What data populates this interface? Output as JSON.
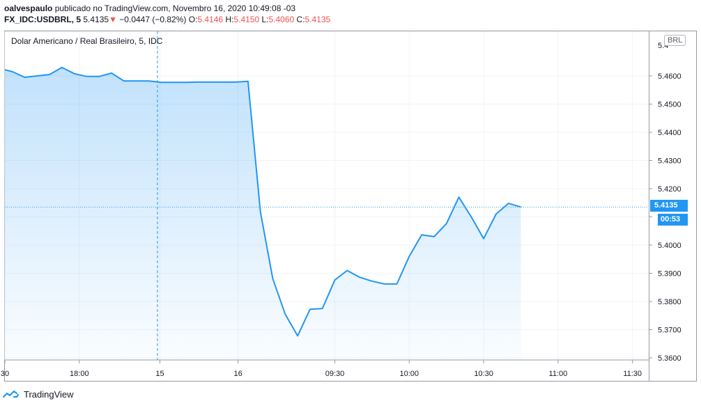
{
  "header": {
    "user": "oalvespaulo",
    "published": "publicado no TradingView.com, Novembro 16, 2020 10:49:08 -03",
    "symbol": "FX_IDC:USDBRL, 5",
    "last": "5.4135",
    "change": "−0.0447 (−0.82%)",
    "ohlc": {
      "o_label": "O:",
      "o": "5.4146",
      "h_label": "H:",
      "h": "5.4150",
      "l_label": "L:",
      "l": "5.4060",
      "c_label": "C:",
      "c": "5.4135"
    }
  },
  "legend": "Dolar Americano / Real Brasileiro, 5, IDC",
  "currency_badge": "BRL",
  "price_tag": "5.4135",
  "countdown_tag": "00:53",
  "footer": {
    "brand": "TradingView"
  },
  "colors": {
    "line": "#2196f3",
    "fill": "#2196f3",
    "grid": "#f0f3fa",
    "down": "#ef5350"
  },
  "chart_data": {
    "type": "area",
    "title": "Dolar Americano / Real Brasileiro, 5, IDC",
    "ylim": [
      5.36,
      5.47
    ],
    "y_ticks": [
      "5.3600",
      "5.3700",
      "5.3800",
      "5.3900",
      "5.4000",
      "5.4100",
      "5.4200",
      "5.4300",
      "5.4400",
      "5.4500",
      "5.4600"
    ],
    "x_ticks": [
      {
        "label": "30",
        "x": 0
      },
      {
        "label": "18:00",
        "x": 6
      },
      {
        "label": "15",
        "x": 12.5
      },
      {
        "label": "16",
        "x": 18.8
      },
      {
        "label": "09:30",
        "x": 26.6
      },
      {
        "label": "10:00",
        "x": 32.6
      },
      {
        "label": "10:30",
        "x": 38.6
      },
      {
        "label": "11:00",
        "x": 44.6
      },
      {
        "label": "11:30",
        "x": 50.6
      }
    ],
    "grid": true,
    "last_value": 5.4135,
    "session_break_x": 12.3,
    "points": [
      [
        -0.3,
        5.4625
      ],
      [
        0.6,
        5.4615
      ],
      [
        1.6,
        5.4595
      ],
      [
        2.6,
        5.46
      ],
      [
        3.6,
        5.4605
      ],
      [
        4.6,
        5.463
      ],
      [
        5.6,
        5.4608
      ],
      [
        6.6,
        5.4598
      ],
      [
        7.6,
        5.4598
      ],
      [
        8.6,
        5.461
      ],
      [
        9.6,
        5.4582
      ],
      [
        10.6,
        5.4582
      ],
      [
        11.6,
        5.4582
      ],
      [
        12.6,
        5.4577
      ],
      [
        13.6,
        5.4577
      ],
      [
        14.6,
        5.4577
      ],
      [
        15.6,
        5.4578
      ],
      [
        16.6,
        5.4578
      ],
      [
        17.6,
        5.4578
      ],
      [
        18.6,
        5.4578
      ],
      [
        19.6,
        5.4581
      ],
      [
        20.6,
        5.4118
      ],
      [
        21.6,
        5.388
      ],
      [
        22.6,
        5.3755
      ],
      [
        23.6,
        5.3678
      ],
      [
        24.6,
        5.3772
      ],
      [
        25.6,
        5.3775
      ],
      [
        26.6,
        5.3876
      ],
      [
        27.6,
        5.391
      ],
      [
        28.6,
        5.3886
      ],
      [
        29.6,
        5.3872
      ],
      [
        30.6,
        5.3862
      ],
      [
        31.6,
        5.3862
      ],
      [
        32.6,
        5.396
      ],
      [
        33.6,
        5.4036
      ],
      [
        34.6,
        5.403
      ],
      [
        35.6,
        5.4076
      ],
      [
        36.6,
        5.417
      ],
      [
        37.6,
        5.41
      ],
      [
        38.6,
        5.4023
      ],
      [
        39.6,
        5.411
      ],
      [
        40.6,
        5.4148
      ],
      [
        41.6,
        5.4135
      ]
    ]
  }
}
